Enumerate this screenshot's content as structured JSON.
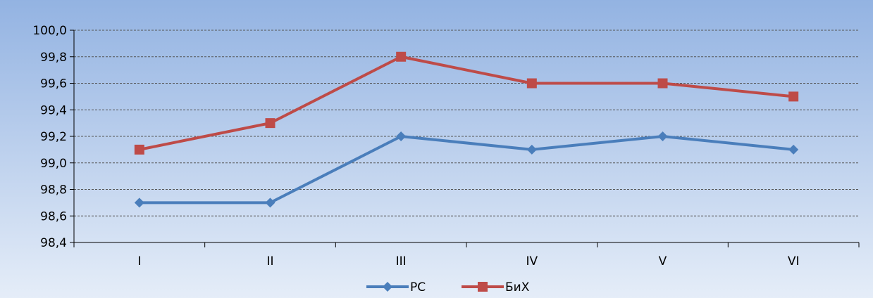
{
  "chart_data": {
    "type": "line",
    "title": "",
    "xlabel": "",
    "ylabel": "",
    "categories": [
      "I",
      "II",
      "III",
      "IV",
      "V",
      "VI"
    ],
    "series": [
      {
        "name": "РС",
        "color": "#4a7ebb",
        "marker": "diamond",
        "values": [
          98.7,
          98.7,
          99.2,
          99.1,
          99.2,
          99.1
        ]
      },
      {
        "name": "БиХ",
        "color": "#be4b48",
        "marker": "square",
        "values": [
          99.1,
          99.3,
          99.8,
          99.6,
          99.6,
          99.5
        ]
      }
    ],
    "ylim": [
      98.4,
      100.0
    ],
    "yticks": [
      98.4,
      98.6,
      98.8,
      99.0,
      99.2,
      99.4,
      99.6,
      99.8,
      100.0
    ],
    "ytick_labels": [
      "98,4",
      "98,6",
      "98,8",
      "99,0",
      "99,2",
      "99,4",
      "99,6",
      "99,8",
      "100,0"
    ],
    "grid": true,
    "legend_position": "bottom",
    "background_gradient": [
      "#93b3e2",
      "#e5edf8"
    ]
  }
}
